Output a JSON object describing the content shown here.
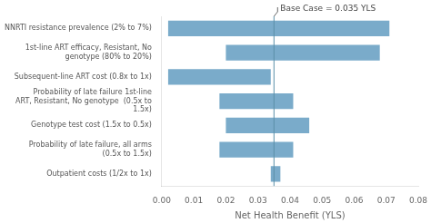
{
  "chart_data": {
    "type": "bar",
    "orientation": "horizontal",
    "categories": [
      "NNRTI resistance prevalence (2% to 7%)",
      "1st-line ART efficacy, Resistant, No genotype (80% to 20%)",
      "Subsequent-line ART cost (0.8x to 1x)",
      "Probability of late failure 1st-line ART, Resistant, No genotype  (0.5x to 1.5x)",
      "Genotype test cost (1.5x to 0.5x)",
      "Probability of late failure, all arms (0.5x to 1.5x)",
      "Outpatient costs (1/2x to 1x)"
    ],
    "values": [
      [
        0.002,
        0.071
      ],
      [
        0.02,
        0.068
      ],
      [
        0.002,
        0.034
      ],
      [
        0.018,
        0.041
      ],
      [
        0.02,
        0.046
      ],
      [
        0.018,
        0.041
      ],
      [
        0.034,
        0.037
      ]
    ],
    "color": "#7aabca",
    "x_label": "Net Health Benefit (YLS)",
    "xlim": [
      0.0,
      0.08
    ],
    "xticks": [
      {
        "value": 0,
        "label": "0.00"
      },
      0.01,
      0.02,
      0.03,
      0.04,
      0.05,
      0.06,
      0.07,
      0.08
    ],
    "annotations": [
      {
        "text": "Base Case = 0.035 YLS",
        "x": 0.035,
        "color": "#5a8fa8"
      }
    ],
    "grid": false
  }
}
